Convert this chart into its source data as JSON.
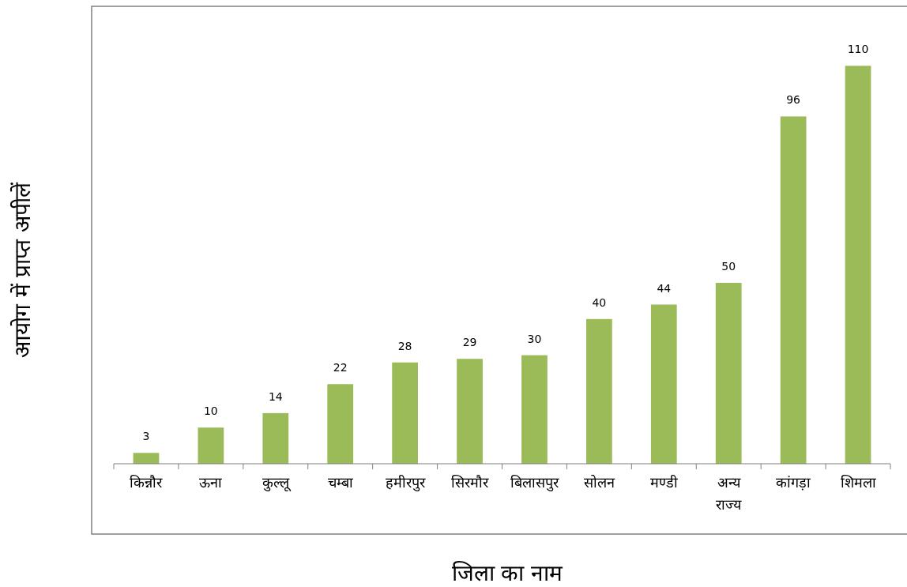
{
  "chart_data": {
    "type": "bar",
    "xlabel": "जिला का नाम",
    "ylabel": "आयोग में प्राप्त अपीलें",
    "categories": [
      "किन्नौर",
      "ऊना",
      "कुल्लू",
      "चम्बा",
      "हमीरपुर",
      "सिरमौर",
      "बिलासपुर",
      "सोलन",
      "मण्डी",
      "अन्य राज्य",
      "कांगड़ा",
      "शिमला"
    ],
    "values": [
      3,
      10,
      14,
      22,
      28,
      29,
      30,
      40,
      44,
      50,
      96,
      110
    ],
    "color": "#9bbb59",
    "ylim": [
      0,
      126
    ],
    "data_labels": true,
    "grid": false
  }
}
